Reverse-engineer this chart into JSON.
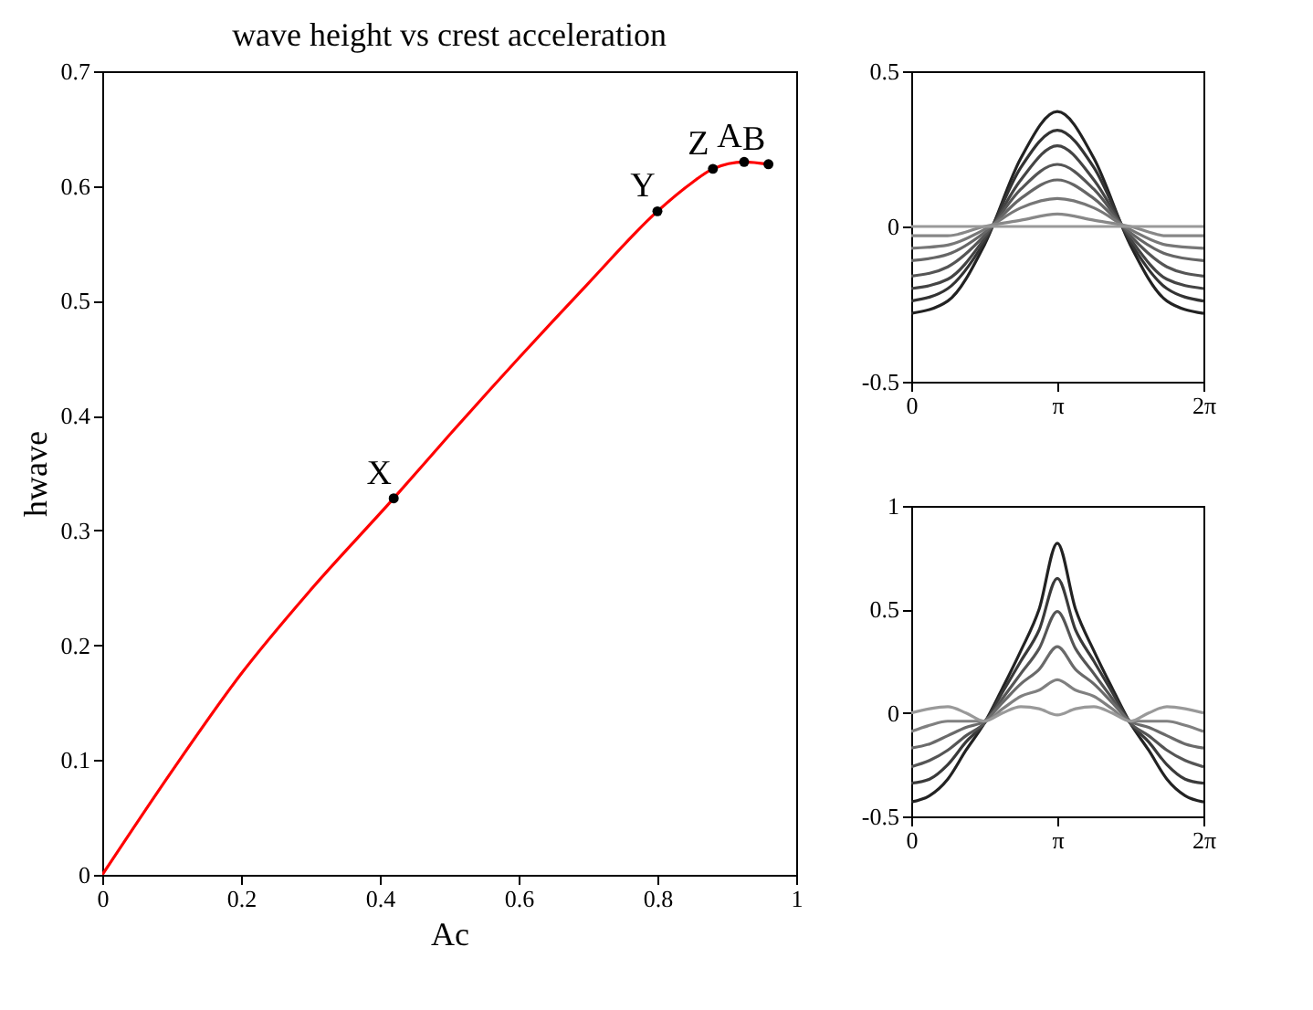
{
  "chart_data": [
    {
      "type": "line",
      "title": "wave height  vs  crest acceleration",
      "xlabel": "Ac",
      "ylabel": "hwave",
      "xlim": [
        0,
        1
      ],
      "xticks": [
        0,
        0.2,
        0.4,
        0.6,
        0.8,
        1
      ],
      "ylim": [
        0,
        0.7
      ],
      "yticks": [
        0,
        0.1,
        0.2,
        0.3,
        0.4,
        0.5,
        0.6,
        0.7
      ],
      "grid": false,
      "series": [
        {
          "type": "line",
          "color": "#ff0000",
          "x": [
            0,
            0.1,
            0.2,
            0.3,
            0.42,
            0.5,
            0.6,
            0.7,
            0.8,
            0.85,
            0.88,
            0.925,
            0.96
          ],
          "values": [
            0,
            0.09,
            0.175,
            0.248,
            0.328,
            0.383,
            0.45,
            0.515,
            0.578,
            0.603,
            0.615,
            0.621,
            0.619
          ]
        },
        {
          "type": "scatter",
          "color": "#000000",
          "x": [
            0.42,
            0.8,
            0.88,
            0.925,
            0.96
          ],
          "values": [
            0.328,
            0.578,
            0.615,
            0.621,
            0.619
          ]
        }
      ],
      "annotations": [
        {
          "text": "X",
          "x": 0.42,
          "y": 0.328
        },
        {
          "text": "Y",
          "x": 0.8,
          "y": 0.578
        },
        {
          "text": "Z",
          "x": 0.88,
          "y": 0.615
        },
        {
          "text": "A",
          "x": 0.925,
          "y": 0.621
        },
        {
          "text": "B",
          "x": 0.96,
          "y": 0.619
        }
      ]
    },
    {
      "type": "line",
      "xlim": [
        0,
        6.2832
      ],
      "xticks": [
        {
          "value": 0,
          "label": "0"
        },
        {
          "value": 3.1416,
          "label": "π"
        },
        {
          "value": 6.2832,
          "label": "2π"
        }
      ],
      "ylim": [
        -0.5,
        0.5
      ],
      "yticks": [
        -0.5,
        0,
        0.5
      ],
      "grid": false,
      "x": [
        0,
        0.7854,
        1.5708,
        2.3562,
        3.1416,
        3.927,
        4.7124,
        5.4978,
        6.2832
      ],
      "series": [
        {
          "color": "#222222",
          "values": [
            -0.28,
            -0.24,
            -0.06,
            0.22,
            0.37,
            0.22,
            -0.06,
            -0.24,
            -0.28
          ]
        },
        {
          "color": "#333333",
          "values": [
            -0.24,
            -0.2,
            -0.05,
            0.19,
            0.31,
            0.19,
            -0.05,
            -0.2,
            -0.24
          ]
        },
        {
          "color": "#444444",
          "values": [
            -0.2,
            -0.17,
            -0.04,
            0.15,
            0.26,
            0.15,
            -0.04,
            -0.17,
            -0.2
          ]
        },
        {
          "color": "#555555",
          "values": [
            -0.16,
            -0.13,
            -0.03,
            0.12,
            0.2,
            0.12,
            -0.03,
            -0.13,
            -0.16
          ]
        },
        {
          "color": "#666666",
          "values": [
            -0.11,
            -0.09,
            -0.02,
            0.09,
            0.15,
            0.09,
            -0.02,
            -0.09,
            -0.11
          ]
        },
        {
          "color": "#777777",
          "values": [
            -0.07,
            -0.06,
            -0.01,
            0.06,
            0.09,
            0.06,
            -0.01,
            -0.06,
            -0.07
          ]
        },
        {
          "color": "#888888",
          "values": [
            -0.03,
            -0.03,
            0,
            0.02,
            0.04,
            0.02,
            0,
            -0.03,
            -0.03
          ]
        },
        {
          "color": "#999999",
          "values": [
            0,
            0,
            0,
            0,
            0,
            0,
            0,
            0,
            0
          ]
        }
      ]
    },
    {
      "type": "line",
      "xlim": [
        0,
        6.2832
      ],
      "xticks": [
        {
          "value": 0,
          "label": "0"
        },
        {
          "value": 3.1416,
          "label": "π"
        },
        {
          "value": 6.2832,
          "label": "2π"
        }
      ],
      "ylim": [
        -0.5,
        1
      ],
      "yticks": [
        -0.5,
        0,
        0.5,
        1
      ],
      "grid": false,
      "x": [
        0,
        0.3927,
        0.7854,
        1.1781,
        1.5708,
        1.9635,
        2.3562,
        2.7489,
        3.1416,
        3.5343,
        3.927,
        4.3197,
        4.7124,
        5.1051,
        5.4978,
        5.8905,
        6.2832
      ],
      "series": [
        {
          "color": "#222222",
          "values": [
            -0.43,
            -0.4,
            -0.32,
            -0.18,
            -0.05,
            0.12,
            0.3,
            0.5,
            0.82,
            0.5,
            0.3,
            0.12,
            -0.05,
            -0.18,
            -0.32,
            -0.4,
            -0.43
          ]
        },
        {
          "color": "#3a3a3a",
          "values": [
            -0.34,
            -0.32,
            -0.25,
            -0.14,
            -0.05,
            0.1,
            0.25,
            0.4,
            0.65,
            0.4,
            0.25,
            0.1,
            -0.05,
            -0.14,
            -0.25,
            -0.32,
            -0.34
          ]
        },
        {
          "color": "#555555",
          "values": [
            -0.26,
            -0.23,
            -0.18,
            -0.11,
            -0.05,
            0.07,
            0.19,
            0.31,
            0.49,
            0.31,
            0.19,
            0.07,
            -0.05,
            -0.11,
            -0.18,
            -0.23,
            -0.26
          ]
        },
        {
          "color": "#6a6a6a",
          "values": [
            -0.17,
            -0.15,
            -0.11,
            -0.07,
            -0.04,
            0.05,
            0.14,
            0.21,
            0.32,
            0.21,
            0.14,
            0.05,
            -0.04,
            -0.07,
            -0.11,
            -0.15,
            -0.17
          ]
        },
        {
          "color": "#808080",
          "values": [
            -0.09,
            -0.06,
            -0.04,
            -0.04,
            -0.04,
            0.02,
            0.08,
            0.11,
            0.16,
            0.11,
            0.08,
            0.02,
            -0.04,
            -0.04,
            -0.04,
            -0.06,
            -0.09
          ]
        },
        {
          "color": "#999999",
          "values": [
            0,
            0.02,
            0.03,
            0,
            -0.04,
            0,
            0.03,
            0.02,
            -0.01,
            0.02,
            0.03,
            0,
            -0.04,
            0,
            0.03,
            0.02,
            0
          ]
        }
      ]
    }
  ]
}
